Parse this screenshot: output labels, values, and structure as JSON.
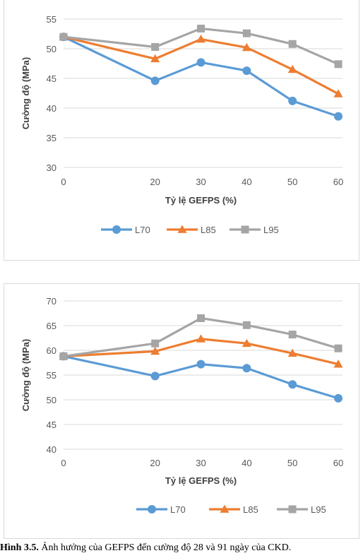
{
  "chart_data": [
    {
      "type": "line",
      "title": "",
      "xlabel": "Tỷ lệ GEFPS (%)",
      "ylabel": "Cường độ (MPa)",
      "x": [
        0,
        20,
        30,
        40,
        50,
        60
      ],
      "ylim": [
        30,
        55
      ],
      "yticks": [
        30,
        35,
        40,
        45,
        50,
        55
      ],
      "grid": true,
      "legend": "bottom",
      "series": [
        {
          "name": "L70",
          "values": [
            52.0,
            44.6,
            47.7,
            46.3,
            41.2,
            38.6
          ],
          "color": "#5b9bd5",
          "marker": "circle"
        },
        {
          "name": "L85",
          "values": [
            52.0,
            48.3,
            51.6,
            50.2,
            46.5,
            42.4
          ],
          "color": "#ed7d31",
          "marker": "triangle"
        },
        {
          "name": "L95",
          "values": [
            52.0,
            50.3,
            53.4,
            52.6,
            50.8,
            47.4
          ],
          "color": "#a5a5a5",
          "marker": "square"
        }
      ]
    },
    {
      "type": "line",
      "title": "",
      "xlabel": "Tỷ lệ GEFPS (%)",
      "ylabel": "Cường độ (MPa)",
      "x": [
        0,
        20,
        30,
        40,
        50,
        60
      ],
      "ylim": [
        40,
        70
      ],
      "yticks": [
        40,
        45,
        50,
        55,
        60,
        65,
        70
      ],
      "grid": true,
      "legend": "bottom",
      "series": [
        {
          "name": "L70",
          "values": [
            58.8,
            54.8,
            57.2,
            56.4,
            53.1,
            50.3
          ],
          "color": "#5b9bd5",
          "marker": "circle"
        },
        {
          "name": "L85",
          "values": [
            58.8,
            59.8,
            62.3,
            61.4,
            59.4,
            57.2
          ],
          "color": "#ed7d31",
          "marker": "triangle"
        },
        {
          "name": "L95",
          "values": [
            58.8,
            61.4,
            66.5,
            65.1,
            63.2,
            60.4
          ],
          "color": "#a5a5a5",
          "marker": "square"
        }
      ]
    }
  ],
  "caption": {
    "label": "Hình 3.5.",
    "text": " Ảnh hưởng của GEFPS đến cường độ 28 và 91 ngày của CKD."
  }
}
